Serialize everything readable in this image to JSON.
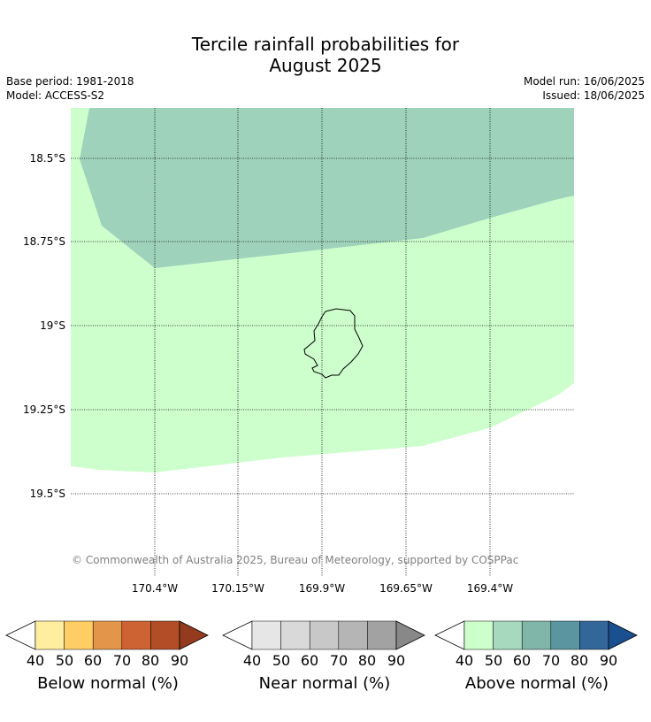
{
  "title": {
    "line1": "Tercile rainfall probabilities for",
    "line2": "August 2025"
  },
  "meta": {
    "base_period": "Base period: 1981-2018",
    "model": "Model: ACCESS-S2",
    "model_run": "Model run: 16/06/2025",
    "issued": "Issued: 18/06/2025"
  },
  "map": {
    "lat_labels": [
      "18.5°S",
      "18.75°S",
      "19°S",
      "19.25°S",
      "19.5°S"
    ],
    "lon_labels": [
      "170.4°W",
      "170.15°W",
      "169.9°W",
      "169.65°W",
      "169.4°W"
    ],
    "copyright": "© Commonwealth of Australia 2025, Bureau of Meteorology, supported by COSPPac",
    "region_colors": {
      "above_40_50": "#ccffcc",
      "above_50_60": "#9fd2bb"
    }
  },
  "colorbars": [
    {
      "title": "Below normal (%)",
      "ticks": [
        "40",
        "50",
        "60",
        "70",
        "80",
        "90"
      ],
      "colors": [
        "#ffffff",
        "#ffeda0",
        "#fece65",
        "#e3964a",
        "#cd6232",
        "#b24d27",
        "#933a1f"
      ]
    },
    {
      "title": "Near normal (%)",
      "ticks": [
        "40",
        "50",
        "60",
        "70",
        "80",
        "90"
      ],
      "colors": [
        "#ffffff",
        "#e6e6e6",
        "#d9d9d9",
        "#c8c8c8",
        "#b5b5b5",
        "#a2a2a2",
        "#888888"
      ]
    },
    {
      "title": "Above normal (%)",
      "ticks": [
        "40",
        "50",
        "60",
        "70",
        "80",
        "90"
      ],
      "colors": [
        "#ffffff",
        "#ccffcc",
        "#a6d9bd",
        "#80b5aa",
        "#5b96a0",
        "#336699",
        "#1a5090"
      ]
    }
  ]
}
